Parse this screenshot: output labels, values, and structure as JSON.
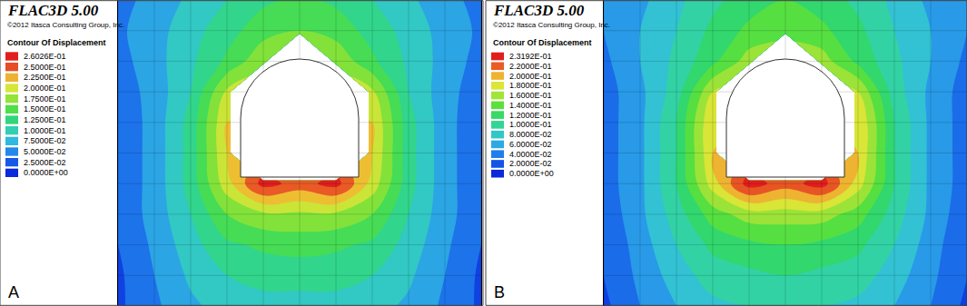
{
  "chart_data": [
    {
      "type": "contour",
      "title": "FLAC3D 5.00",
      "subtitle": "©2012 Itasca Consulting Group, Inc.",
      "annotations": [
        "A"
      ],
      "tick_labels": false,
      "grid": true,
      "xlim": [
        0,
        400
      ],
      "ylim": [
        0,
        337
      ],
      "x": [
        0,
        40,
        80,
        120,
        160,
        200,
        240,
        280,
        320,
        360,
        400
      ],
      "y": [
        0,
        33.7,
        67.4,
        101.1,
        134.8,
        168.5,
        202.2,
        235.9,
        269.6,
        303.3,
        337
      ],
      "z": [
        [
          0.02,
          0.045,
          0.07,
          0.085,
          0.09,
          0.09,
          0.09,
          0.085,
          0.07,
          0.045,
          0.02
        ],
        [
          0.02,
          0.05,
          0.08,
          0.1,
          0.11,
          0.11,
          0.11,
          0.1,
          0.08,
          0.05,
          0.02
        ],
        [
          0.025,
          0.055,
          0.09,
          0.12,
          0.13,
          0.135,
          0.13,
          0.12,
          0.09,
          0.055,
          0.025
        ],
        [
          0.03,
          0.06,
          0.1,
          0.15,
          0.17,
          0.17,
          0.17,
          0.15,
          0.1,
          0.06,
          0.03
        ],
        [
          0.03,
          0.06,
          0.11,
          0.19,
          0.26,
          0.24,
          0.26,
          0.19,
          0.11,
          0.06,
          0.03
        ],
        [
          0.03,
          0.06,
          0.11,
          0.2,
          null,
          null,
          null,
          0.2,
          0.11,
          0.06,
          0.03
        ],
        [
          0.03,
          0.06,
          0.11,
          0.2,
          null,
          null,
          null,
          0.2,
          0.11,
          0.06,
          0.03
        ],
        [
          0.035,
          0.06,
          0.1,
          0.18,
          null,
          null,
          null,
          0.18,
          0.1,
          0.06,
          0.035
        ],
        [
          0.04,
          0.065,
          0.095,
          0.13,
          0.17,
          null,
          0.17,
          0.13,
          0.095,
          0.065,
          0.04
        ],
        [
          0.045,
          0.065,
          0.09,
          0.115,
          0.14,
          0.15,
          0.14,
          0.115,
          0.09,
          0.065,
          0.045
        ],
        [
          0.04,
          0.06,
          0.08,
          0.1,
          0.12,
          0.13,
          0.12,
          0.1,
          0.08,
          0.06,
          0.04
        ]
      ],
      "colorbar": {
        "title": "Contour Of Displacement",
        "range": [
          0,
          0.26026
        ],
        "ticks": [
          {
            "value": 0,
            "label": "0.0000E+00"
          },
          {
            "value": 0.025,
            "label": "2.5000E-02"
          },
          {
            "value": 0.05,
            "label": "5.0000E-02"
          },
          {
            "value": 0.075,
            "label": "7.5000E-02"
          },
          {
            "value": 0.1,
            "label": "1.0000E-01"
          },
          {
            "value": 0.125,
            "label": "1.2500E-01"
          },
          {
            "value": 0.15,
            "label": "1.5000E-01"
          },
          {
            "value": 0.175,
            "label": "1.7500E-01"
          },
          {
            "value": 0.2,
            "label": "2.0000E-01"
          },
          {
            "value": 0.225,
            "label": "2.2500E-01"
          },
          {
            "value": 0.25,
            "label": "2.5000E-01"
          },
          {
            "value": 0.26026,
            "label": "2.6026E-01"
          }
        ]
      }
    },
    {
      "type": "contour",
      "title": "FLAC3D 5.00",
      "subtitle": "©2012 Itasca Consulting Group, Inc.",
      "annotations": [
        "B"
      ],
      "tick_labels": false,
      "grid": true,
      "xlim": [
        0,
        400
      ],
      "ylim": [
        0,
        337
      ],
      "x": [
        0,
        40,
        80,
        120,
        160,
        200,
        240,
        280,
        320,
        360,
        400
      ],
      "y": [
        0,
        33.7,
        67.4,
        101.1,
        134.8,
        168.5,
        202.2,
        235.9,
        269.6,
        303.3,
        337
      ],
      "z": [
        [
          0.015,
          0.04,
          0.06,
          0.075,
          0.08,
          0.08,
          0.08,
          0.075,
          0.06,
          0.04,
          0.015
        ],
        [
          0.02,
          0.045,
          0.07,
          0.09,
          0.095,
          0.1,
          0.095,
          0.09,
          0.07,
          0.045,
          0.02
        ],
        [
          0.02,
          0.05,
          0.08,
          0.105,
          0.115,
          0.12,
          0.115,
          0.105,
          0.08,
          0.05,
          0.02
        ],
        [
          0.025,
          0.055,
          0.09,
          0.13,
          0.15,
          0.15,
          0.15,
          0.13,
          0.09,
          0.055,
          0.025
        ],
        [
          0.03,
          0.055,
          0.1,
          0.17,
          0.23,
          0.21,
          0.23,
          0.17,
          0.1,
          0.055,
          0.03
        ],
        [
          0.03,
          0.055,
          0.1,
          0.18,
          null,
          null,
          null,
          0.18,
          0.1,
          0.055,
          0.03
        ],
        [
          0.03,
          0.055,
          0.1,
          0.18,
          null,
          null,
          null,
          0.18,
          0.1,
          0.055,
          0.03
        ],
        [
          0.03,
          0.055,
          0.09,
          0.16,
          null,
          null,
          null,
          0.16,
          0.09,
          0.055,
          0.03
        ],
        [
          0.035,
          0.06,
          0.085,
          0.115,
          0.15,
          null,
          0.15,
          0.115,
          0.085,
          0.06,
          0.035
        ],
        [
          0.04,
          0.06,
          0.08,
          0.105,
          0.125,
          0.135,
          0.125,
          0.105,
          0.08,
          0.06,
          0.04
        ],
        [
          0.04,
          0.055,
          0.075,
          0.095,
          0.11,
          0.12,
          0.11,
          0.095,
          0.075,
          0.055,
          0.04
        ]
      ],
      "colorbar": {
        "title": "Contour Of Displacement",
        "range": [
          0,
          0.23192
        ],
        "ticks": [
          {
            "value": 0,
            "label": "0.0000E+00"
          },
          {
            "value": 0.02,
            "label": "2.0000E-02"
          },
          {
            "value": 0.04,
            "label": "4.0000E-02"
          },
          {
            "value": 0.06,
            "label": "6.0000E-02"
          },
          {
            "value": 0.08,
            "label": "8.0000E-02"
          },
          {
            "value": 0.1,
            "label": "1.0000E-01"
          },
          {
            "value": 0.12,
            "label": "1.2000E-01"
          },
          {
            "value": 0.14,
            "label": "1.4000E-01"
          },
          {
            "value": 0.16,
            "label": "1.6000E-01"
          },
          {
            "value": 0.18,
            "label": "1.8000E-01"
          },
          {
            "value": 0.2,
            "label": "2.0000E-01"
          },
          {
            "value": 0.22,
            "label": "2.2000E-01"
          },
          {
            "value": 0.23192,
            "label": "2.3192E-01"
          }
        ]
      }
    }
  ]
}
